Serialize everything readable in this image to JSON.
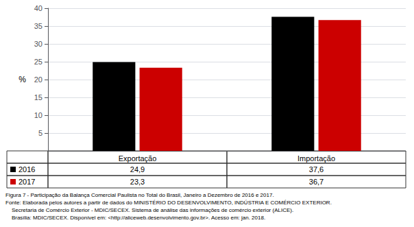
{
  "chart_data": {
    "type": "bar",
    "title": "Figura 7 - Participação da Balança Comercial Paulista no Total do Brasil, Janeiro a Dezembro de 2016 e 2017.",
    "annotations": [
      "Fonte: Elaborada pelos autores a partir de dados do MINISTÉRIO DO DESENVOLVIMENTO, INDÚSTRIA E COMÉRCIO EXTERIOR.",
      "    Secretaria de Comércio Exterior - MDIC/SECEX. Sistema de análise das informações de comércio exterior (ALICE).",
      "    Brasília: MDIC/SECEX. Disponível em: <http://aliceweb.desenvolvimento.gov.br>. Acesso em: jan. 2018."
    ],
    "ylabel": "%",
    "categories": [
      "Exportação",
      "Importação"
    ],
    "series": [
      {
        "name": "2016",
        "color": "#000000",
        "values": [
          24.9,
          37.6
        ],
        "value_labels": [
          "24,9",
          "37,6"
        ]
      },
      {
        "name": "2017",
        "color": "#cc0000",
        "values": [
          23.3,
          36.7
        ],
        "value_labels": [
          "23,3",
          "36,7"
        ]
      }
    ],
    "ylim": [
      0,
      40
    ],
    "yticks": [
      5,
      10,
      15,
      20,
      25,
      30,
      35,
      40
    ],
    "grid": true
  }
}
